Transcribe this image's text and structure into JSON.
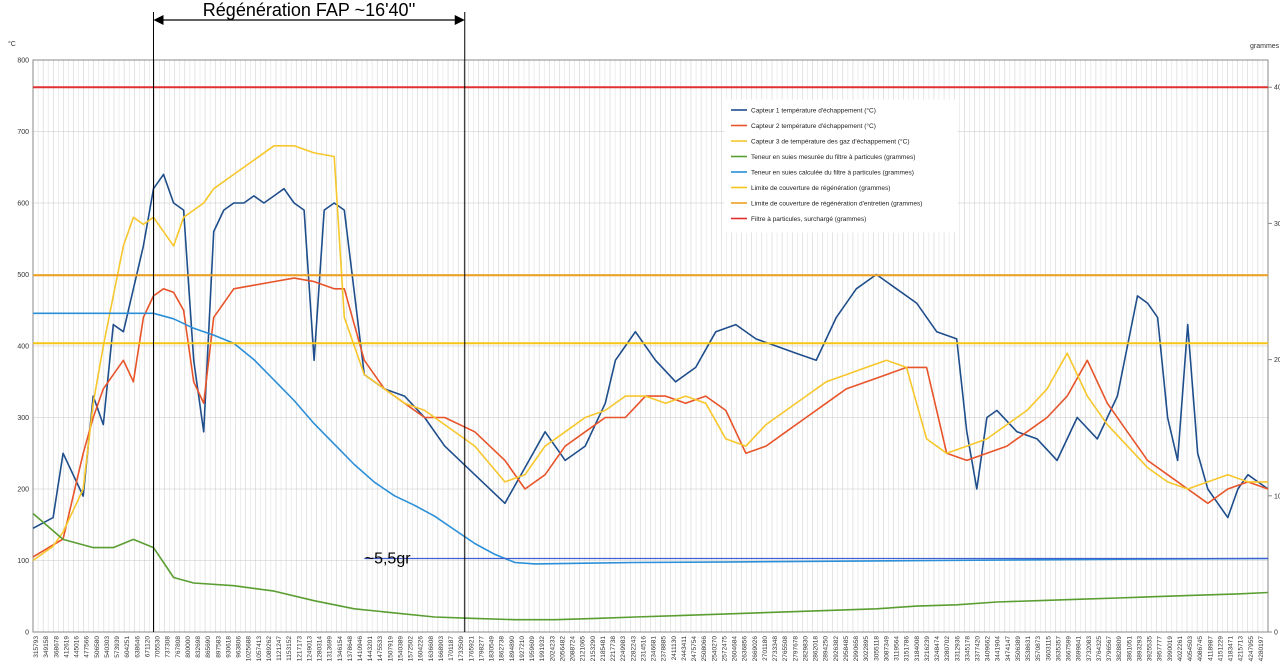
{
  "chart_data": {
    "type": "line",
    "title": "",
    "y_left": {
      "unit": "°C",
      "ticks": [
        0,
        100,
        200,
        300,
        400,
        500,
        600,
        700,
        800
      ],
      "range": [
        0,
        800
      ]
    },
    "y_right": {
      "unit": "grammes",
      "ticks": [
        0,
        10,
        20,
        30,
        40
      ],
      "range": [
        0,
        42
      ]
    },
    "x_ticks": [
      "315793",
      "349158",
      "368678",
      "412619",
      "445016",
      "477566",
      "506580",
      "540303",
      "573939",
      "604251",
      "638646",
      "671120",
      "705530",
      "737308",
      "767808",
      "800000",
      "832698",
      "865690",
      "897583",
      "930618",
      "963806",
      "1025688",
      "1057413",
      "1089262",
      "1121247",
      "1153152",
      "1217173",
      "1249013",
      "1280314",
      "1313699",
      "1346154",
      "1378648",
      "1410946",
      "1443201",
      "1475533",
      "1507919",
      "1540389",
      "1572502",
      "1604226",
      "1636608",
      "1668903",
      "1701187",
      "1733509",
      "1765921",
      "1798277",
      "1830549",
      "1862738",
      "1894890",
      "1927210",
      "1959609",
      "1991932",
      "2024233",
      "2056482",
      "2088724",
      "2121065",
      "2153290",
      "2185481",
      "2217738",
      "2249983",
      "2282243",
      "2314516",
      "2346681",
      "2378885",
      "2411130",
      "2443411",
      "2475754",
      "2508066",
      "2540270",
      "2572475",
      "2604684",
      "2636856",
      "2669026",
      "2701180",
      "2733348",
      "2765508",
      "2797678",
      "2829830",
      "2862018",
      "2894250",
      "2926382",
      "2958485",
      "2990658",
      "3022895",
      "3055118",
      "3087349",
      "3119564",
      "3151786",
      "3184008",
      "3216239",
      "3248474",
      "3280702",
      "3312936",
      "3345178",
      "3377420",
      "3409662",
      "3441904",
      "3474147",
      "3506389",
      "3538631",
      "3570873",
      "3603115",
      "3635357",
      "3667599",
      "3699841",
      "3732083",
      "3764325",
      "3796567",
      "3828809",
      "3861051",
      "3893293",
      "3925535",
      "3957777",
      "3990019",
      "4022261",
      "4054503",
      "4086745",
      "4118987",
      "4151229",
      "4183471",
      "4215713",
      "4247955",
      "4280197"
    ],
    "x_range": [
      0,
      123
    ],
    "legend": [
      "Capteur 1 température d'échappement (°C)",
      "Capteur 2 température d'échappement (°C)",
      "Capteur 3 de température des gaz d'échappement (°C)",
      "Teneur en suies mesurée du filtre à particules (grammes)",
      "Teneur en suies calculée du filtre à particules (grammes)",
      "Limite de couverture de régénération (grammes)",
      "Limite de couverture de régénération d'entretien (grammes)",
      "Filtre à particules, surchargé (grammes)"
    ],
    "legend_position": "top-right",
    "grid": true,
    "series": [
      {
        "name": "Capteur 1 température d'échappement (°C)",
        "axis": "left",
        "color": "#1f4e8c",
        "x": [
          0,
          2,
          3,
          5,
          6,
          7,
          8,
          9,
          10,
          11,
          12,
          13,
          14,
          15,
          16,
          17,
          18,
          19,
          20,
          21,
          22,
          23,
          24,
          25,
          26,
          27,
          28,
          29,
          30,
          31,
          33,
          35,
          37,
          39,
          41,
          44,
          47,
          49,
          51,
          53,
          55,
          57,
          58,
          59,
          60,
          62,
          64,
          66,
          68,
          70,
          72,
          74,
          76,
          78,
          80,
          82,
          84,
          86,
          88,
          90,
          92,
          93,
          94,
          95,
          96,
          98,
          100,
          102,
          104,
          106,
          108,
          110,
          111,
          112,
          113,
          114,
          115,
          116,
          117,
          118,
          119,
          120,
          121,
          122,
          123
        ],
        "y": [
          145,
          160,
          250,
          190,
          330,
          290,
          430,
          420,
          480,
          540,
          620,
          640,
          600,
          590,
          380,
          280,
          560,
          590,
          600,
          600,
          610,
          600,
          610,
          620,
          600,
          590,
          380,
          590,
          600,
          590,
          360,
          340,
          330,
          300,
          260,
          220,
          180,
          230,
          280,
          240,
          260,
          320,
          380,
          400,
          420,
          380,
          350,
          370,
          420,
          430,
          410,
          400,
          390,
          380,
          440,
          480,
          500,
          480,
          460,
          420,
          410,
          280,
          200,
          300,
          310,
          280,
          270,
          240,
          300,
          270,
          330,
          470,
          460,
          440,
          300,
          240,
          430,
          250,
          200,
          180,
          160,
          200,
          220,
          210,
          200
        ]
      },
      {
        "name": "Capteur 2 température d'échappement (°C)",
        "axis": "left",
        "color": "#e8542a",
        "x": [
          0,
          3,
          5,
          6,
          7,
          8,
          9,
          10,
          11,
          12,
          13,
          14,
          15,
          16,
          17,
          18,
          20,
          22,
          24,
          26,
          28,
          30,
          31,
          33,
          35,
          37,
          39,
          41,
          44,
          47,
          49,
          51,
          53,
          55,
          57,
          59,
          61,
          63,
          65,
          67,
          69,
          71,
          73,
          75,
          77,
          79,
          81,
          83,
          85,
          87,
          89,
          91,
          93,
          95,
          97,
          99,
          101,
          103,
          105,
          107,
          109,
          111,
          113,
          115,
          117,
          119,
          121,
          123
        ],
        "y": [
          105,
          130,
          250,
          300,
          340,
          360,
          380,
          350,
          440,
          470,
          480,
          475,
          450,
          350,
          320,
          440,
          480,
          485,
          490,
          495,
          490,
          480,
          480,
          380,
          340,
          320,
          300,
          300,
          280,
          240,
          200,
          220,
          260,
          280,
          300,
          300,
          330,
          330,
          320,
          330,
          310,
          250,
          260,
          280,
          300,
          320,
          340,
          350,
          360,
          370,
          370,
          250,
          240,
          250,
          260,
          280,
          300,
          330,
          380,
          320,
          280,
          240,
          220,
          200,
          180,
          200,
          210,
          200
        ]
      },
      {
        "name": "Capteur 3 de température des gaz d'échappement (°C)",
        "axis": "left",
        "color": "#f7c72c",
        "x": [
          0,
          2,
          3,
          5,
          6,
          7,
          8,
          9,
          10,
          11,
          12,
          13,
          14,
          15,
          16,
          17,
          18,
          20,
          22,
          24,
          26,
          28,
          30,
          31,
          33,
          35,
          37,
          39,
          41,
          44,
          47,
          49,
          51,
          53,
          55,
          57,
          59,
          61,
          63,
          65,
          67,
          69,
          71,
          73,
          75,
          77,
          79,
          81,
          83,
          85,
          87,
          89,
          91,
          93,
          95,
          97,
          99,
          101,
          103,
          105,
          107,
          109,
          111,
          113,
          115,
          117,
          119,
          121,
          123
        ],
        "y": [
          100,
          120,
          140,
          200,
          320,
          400,
          470,
          540,
          580,
          570,
          580,
          560,
          540,
          580,
          590,
          600,
          620,
          640,
          660,
          680,
          680,
          670,
          665,
          440,
          360,
          340,
          320,
          310,
          290,
          260,
          210,
          220,
          260,
          280,
          300,
          310,
          330,
          330,
          320,
          330,
          320,
          270,
          260,
          290,
          310,
          330,
          350,
          360,
          370,
          380,
          370,
          270,
          250,
          260,
          270,
          290,
          310,
          340,
          390,
          330,
          290,
          260,
          230,
          210,
          200,
          210,
          220,
          210,
          210
        ]
      },
      {
        "name": "Teneur en suies mesurée du filtre à particules (grammes)",
        "axis": "right",
        "color": "#5a9e32",
        "x": [
          0,
          3,
          6,
          8,
          10,
          12,
          14,
          16,
          20,
          24,
          28,
          32,
          36,
          40,
          44,
          48,
          52,
          56,
          60,
          64,
          68,
          72,
          76,
          80,
          84,
          88,
          92,
          96,
          100,
          104,
          108,
          112,
          116,
          120,
          123
        ],
        "y": [
          8.7,
          6.8,
          6.2,
          6.2,
          6.8,
          6.2,
          4.0,
          3.6,
          3.4,
          3.0,
          2.3,
          1.7,
          1.4,
          1.1,
          1.0,
          0.9,
          0.9,
          1.0,
          1.1,
          1.2,
          1.3,
          1.4,
          1.5,
          1.6,
          1.7,
          1.9,
          2.0,
          2.2,
          2.3,
          2.4,
          2.5,
          2.6,
          2.7,
          2.8,
          2.9
        ]
      },
      {
        "name": "Teneur en suies calculée du filtre à particules (grammes)",
        "axis": "right",
        "color": "#2a8fd8",
        "x": [
          0,
          4,
          8,
          12,
          14,
          16,
          18,
          20,
          22,
          24,
          26,
          28,
          30,
          32,
          34,
          36,
          38,
          40,
          42,
          44,
          46,
          48,
          50,
          55,
          60,
          70,
          80,
          90,
          100,
          110,
          123
        ],
        "y": [
          23.4,
          23.4,
          23.4,
          23.4,
          23.0,
          22.3,
          21.8,
          21.2,
          20.0,
          18.5,
          17.0,
          15.3,
          13.8,
          12.3,
          11.0,
          10.0,
          9.3,
          8.5,
          7.5,
          6.5,
          5.7,
          5.1,
          5.0,
          5.05,
          5.1,
          5.15,
          5.2,
          5.25,
          5.3,
          5.35,
          5.4
        ]
      },
      {
        "name": "Limite de couverture de régénération (grammes)",
        "axis": "right",
        "color": "#f5c518",
        "x": [
          0,
          123
        ],
        "y": [
          21.2,
          21.2
        ]
      },
      {
        "name": "Limite de couverture de régénération d'entretien (grammes)",
        "axis": "right",
        "color": "#f0a020",
        "x": [
          0,
          123
        ],
        "y": [
          26.2,
          26.2
        ]
      },
      {
        "name": "Filtre à particules, surchargé (grammes)",
        "axis": "right",
        "color": "#e03030",
        "x": [
          0,
          123
        ],
        "y": [
          40,
          40
        ]
      }
    ],
    "extra_lines": [
      {
        "axis": "right",
        "color": "#4060d0",
        "x": [
          33,
          123
        ],
        "y": [
          5.4,
          5.4
        ]
      }
    ],
    "annotations": {
      "regeneration_label": "Régénération FAP ~16'40''",
      "regeneration_start_x": 12,
      "regeneration_end_x": 43,
      "soot_label": "~5,5gr"
    },
    "colors": {
      "grid_major": "#c8c8c8",
      "grid_minor": "#dcdcdc",
      "axis": "#888888"
    }
  }
}
